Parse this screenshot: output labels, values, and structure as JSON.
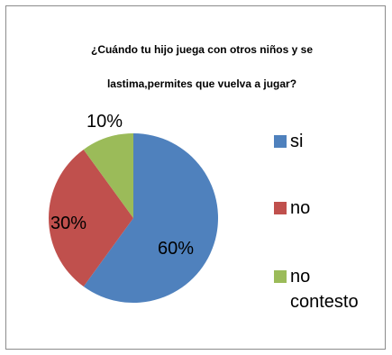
{
  "chart_data": {
    "type": "pie",
    "title": "¿Cuándo tu hijo juega con otros niños y se lastima,permites que vuelva a jugar?",
    "title_lines": [
      "¿Cuándo tu hijo juega con otros niños y se",
      "lastima,permites que vuelva a jugar?"
    ],
    "categories": [
      "si",
      "no",
      "no contesto"
    ],
    "values": [
      60,
      30,
      10
    ],
    "data_labels": [
      "60%",
      "30%",
      "10%"
    ],
    "colors": [
      "#4f81bd",
      "#c0504d",
      "#9bbb59"
    ],
    "legend_position": "right"
  }
}
